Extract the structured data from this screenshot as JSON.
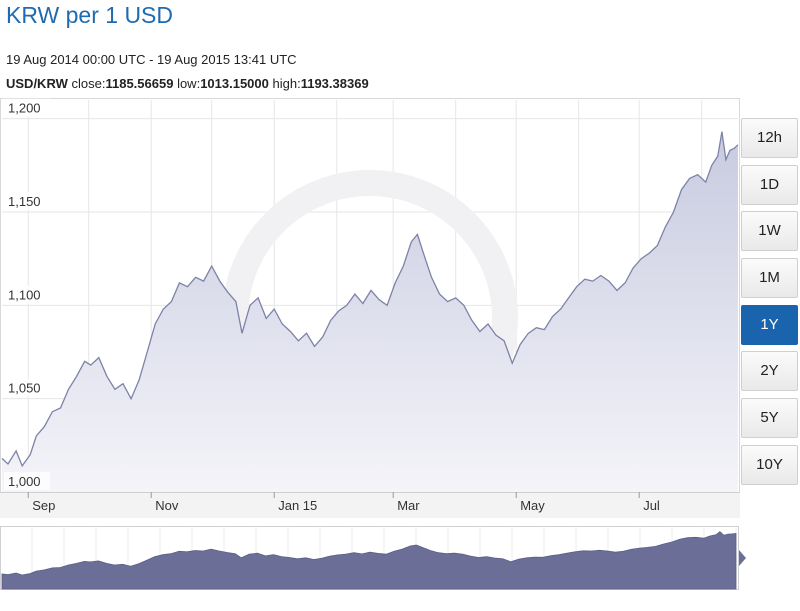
{
  "header": {
    "title": "KRW per 1 USD",
    "date_range": "19 Aug 2014 00:00 UTC - 19 Aug 2015 13:41 UTC",
    "pair": "USD/KRW",
    "close_label": "close:",
    "close_value": "1185.56659",
    "low_label": "low:",
    "low_value": "1013.15000",
    "high_label": "high:",
    "high_value": "1193.38369"
  },
  "timeframes": {
    "options": [
      "12h",
      "1D",
      "1W",
      "1M",
      "1Y",
      "2Y",
      "5Y",
      "10Y"
    ],
    "selected": "1Y"
  },
  "colors": {
    "line": "#7d82a8",
    "area_top": "#c8cbe0",
    "area_bottom": "#f4f4f9",
    "navigator_fill": "#6b6f98",
    "accent": "#1a63ad",
    "title": "#1f6bb0"
  },
  "chart_data": {
    "type": "area",
    "ylim": [
      1000,
      1210
    ],
    "y_ticks": [
      1000,
      1050,
      1100,
      1150,
      1200
    ],
    "y_tick_labels": [
      "1,000",
      "1,050",
      "1,100",
      "1,150",
      "1,200"
    ],
    "x_range": [
      "2014-08-19",
      "2015-08-19"
    ],
    "x_ticks": [
      {
        "date": "2014-09-01",
        "label": "Sep"
      },
      {
        "date": "2014-11-01",
        "label": "Nov"
      },
      {
        "date": "2015-01-01",
        "label": "Jan 15"
      },
      {
        "date": "2015-03-01",
        "label": "Mar"
      },
      {
        "date": "2015-05-01",
        "label": "May"
      },
      {
        "date": "2015-07-01",
        "label": "Jul"
      }
    ],
    "grid": true,
    "series": [
      {
        "points": [
          [
            "2014-08-19",
            1018
          ],
          [
            "2014-08-22",
            1015
          ],
          [
            "2014-08-26",
            1022
          ],
          [
            "2014-08-29",
            1014
          ],
          [
            "2014-09-02",
            1020
          ],
          [
            "2014-09-05",
            1030
          ],
          [
            "2014-09-09",
            1035
          ],
          [
            "2014-09-13",
            1043
          ],
          [
            "2014-09-17",
            1045
          ],
          [
            "2014-09-21",
            1055
          ],
          [
            "2014-09-25",
            1062
          ],
          [
            "2014-09-29",
            1070
          ],
          [
            "2014-10-02",
            1068
          ],
          [
            "2014-10-06",
            1072
          ],
          [
            "2014-10-10",
            1062
          ],
          [
            "2014-10-14",
            1055
          ],
          [
            "2014-10-18",
            1058
          ],
          [
            "2014-10-22",
            1050
          ],
          [
            "2014-10-26",
            1060
          ],
          [
            "2014-10-30",
            1075
          ],
          [
            "2014-11-03",
            1090
          ],
          [
            "2014-11-07",
            1098
          ],
          [
            "2014-11-11",
            1102
          ],
          [
            "2014-11-15",
            1112
          ],
          [
            "2014-11-19",
            1110
          ],
          [
            "2014-11-23",
            1115
          ],
          [
            "2014-11-27",
            1113
          ],
          [
            "2014-12-01",
            1121
          ],
          [
            "2014-12-05",
            1113
          ],
          [
            "2014-12-09",
            1107
          ],
          [
            "2014-12-13",
            1102
          ],
          [
            "2014-12-16",
            1085
          ],
          [
            "2014-12-20",
            1100
          ],
          [
            "2014-12-24",
            1104
          ],
          [
            "2014-12-28",
            1093
          ],
          [
            "2015-01-01",
            1098
          ],
          [
            "2015-01-05",
            1090
          ],
          [
            "2015-01-09",
            1086
          ],
          [
            "2015-01-13",
            1081
          ],
          [
            "2015-01-17",
            1085
          ],
          [
            "2015-01-21",
            1078
          ],
          [
            "2015-01-25",
            1083
          ],
          [
            "2015-01-29",
            1092
          ],
          [
            "2015-02-02",
            1097
          ],
          [
            "2015-02-06",
            1100
          ],
          [
            "2015-02-10",
            1106
          ],
          [
            "2015-02-14",
            1101
          ],
          [
            "2015-02-18",
            1108
          ],
          [
            "2015-02-22",
            1103
          ],
          [
            "2015-02-26",
            1100
          ],
          [
            "2015-03-02",
            1112
          ],
          [
            "2015-03-06",
            1121
          ],
          [
            "2015-03-10",
            1134
          ],
          [
            "2015-03-13",
            1138
          ],
          [
            "2015-03-16",
            1128
          ],
          [
            "2015-03-20",
            1115
          ],
          [
            "2015-03-24",
            1106
          ],
          [
            "2015-03-28",
            1102
          ],
          [
            "2015-04-01",
            1104
          ],
          [
            "2015-04-05",
            1100
          ],
          [
            "2015-04-09",
            1092
          ],
          [
            "2015-04-13",
            1086
          ],
          [
            "2015-04-17",
            1090
          ],
          [
            "2015-04-21",
            1084
          ],
          [
            "2015-04-25",
            1081
          ],
          [
            "2015-04-29",
            1069
          ],
          [
            "2015-05-03",
            1079
          ],
          [
            "2015-05-07",
            1085
          ],
          [
            "2015-05-11",
            1088
          ],
          [
            "2015-05-15",
            1087
          ],
          [
            "2015-05-19",
            1094
          ],
          [
            "2015-05-23",
            1098
          ],
          [
            "2015-05-27",
            1104
          ],
          [
            "2015-05-31",
            1110
          ],
          [
            "2015-06-04",
            1114
          ],
          [
            "2015-06-08",
            1113
          ],
          [
            "2015-06-12",
            1116
          ],
          [
            "2015-06-16",
            1113
          ],
          [
            "2015-06-20",
            1108
          ],
          [
            "2015-06-24",
            1112
          ],
          [
            "2015-06-28",
            1120
          ],
          [
            "2015-07-02",
            1125
          ],
          [
            "2015-07-06",
            1128
          ],
          [
            "2015-07-10",
            1132
          ],
          [
            "2015-07-14",
            1142
          ],
          [
            "2015-07-18",
            1150
          ],
          [
            "2015-07-22",
            1162
          ],
          [
            "2015-07-26",
            1168
          ],
          [
            "2015-07-30",
            1170
          ],
          [
            "2015-08-03",
            1166
          ],
          [
            "2015-08-06",
            1175
          ],
          [
            "2015-08-09",
            1180
          ],
          [
            "2015-08-11",
            1193
          ],
          [
            "2015-08-13",
            1178
          ],
          [
            "2015-08-15",
            1183
          ],
          [
            "2015-08-17",
            1184
          ],
          [
            "2015-08-19",
            1186
          ]
        ]
      }
    ]
  }
}
